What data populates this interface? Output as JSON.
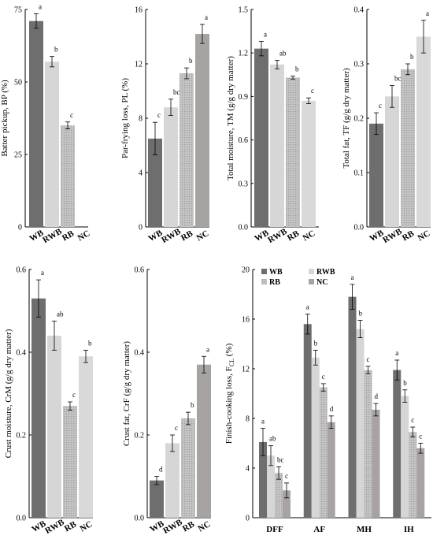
{
  "chart_data": [
    {
      "type": "bar",
      "id": "bp",
      "ylabel": "Batter pickup, BP (%)",
      "categories": [
        "WB",
        "RWB",
        "RB",
        "NC"
      ],
      "values": [
        71,
        57,
        35,
        null
      ],
      "errors": [
        2.5,
        1.8,
        1.2,
        null
      ],
      "letters": [
        "a",
        "b",
        "c",
        ""
      ],
      "ylim": [
        0,
        75
      ],
      "yticks": [
        "0",
        "25",
        "50",
        "75"
      ]
    },
    {
      "type": "bar",
      "id": "pl",
      "ylabel": "Par-frying loss, PL (%)",
      "categories": [
        "WB",
        "RWB",
        "RB",
        "NC"
      ],
      "values": [
        6.5,
        8.8,
        11.3,
        14.2
      ],
      "errors": [
        1.2,
        0.6,
        0.4,
        0.7
      ],
      "letters": [
        "c",
        "bc",
        "b",
        "a"
      ],
      "ylim": [
        0,
        16
      ],
      "yticks": [
        "0",
        "4",
        "8",
        "12",
        "16"
      ]
    },
    {
      "type": "bar",
      "id": "tm",
      "ylabel": "Total moisture, TM (g/g dry matter)",
      "categories": [
        "WB",
        "RWB",
        "RB",
        "NC"
      ],
      "values": [
        1.23,
        1.12,
        1.03,
        0.87
      ],
      "errors": [
        0.05,
        0.03,
        0.01,
        0.02
      ],
      "letters": [
        "a",
        "ab",
        "b",
        "c"
      ],
      "ylim": [
        0,
        1.5
      ],
      "yticks": [
        "0.0",
        "0.3",
        "0.6",
        "0.9",
        "1.2",
        "1.5"
      ]
    },
    {
      "type": "bar",
      "id": "tf",
      "ylabel": "Total fat, TF (g/g dry matter)",
      "categories": [
        "WB",
        "RWB",
        "RB",
        "NC"
      ],
      "values": [
        0.19,
        0.24,
        0.29,
        0.35
      ],
      "errors": [
        0.02,
        0.02,
        0.01,
        0.03
      ],
      "letters": [
        "c",
        "bc",
        "b",
        "a"
      ],
      "ylim": [
        0,
        0.4
      ],
      "yticks": [
        "0.0",
        "0.1",
        "0.2",
        "0.3",
        "0.4"
      ]
    },
    {
      "type": "bar",
      "id": "crm",
      "ylabel": "Crust moisture, CrM (g/g dry matter)",
      "categories": [
        "WB",
        "RWB",
        "RB",
        "NC"
      ],
      "values": [
        0.53,
        0.44,
        0.27,
        0.39
      ],
      "errors": [
        0.045,
        0.035,
        0.01,
        0.015
      ],
      "letters": [
        "a",
        "ab",
        "c",
        "b"
      ],
      "ylim": [
        0,
        0.6
      ],
      "yticks": [
        "0.0",
        "0.2",
        "0.4",
        "0.6"
      ]
    },
    {
      "type": "bar",
      "id": "crf",
      "ylabel": "Crust fat, CrF (g/g dry matter)",
      "categories": [
        "WB",
        "RWB",
        "RB",
        "NC"
      ],
      "values": [
        0.09,
        0.18,
        0.24,
        0.37
      ],
      "errors": [
        0.01,
        0.02,
        0.015,
        0.02
      ],
      "letters": [
        "d",
        "c",
        "b",
        "a"
      ],
      "ylim": [
        0,
        0.6
      ],
      "yticks": [
        "0.0",
        "0.2",
        "0.4",
        "0.6"
      ]
    },
    {
      "type": "bar",
      "id": "fcl",
      "ylabel": "Finish-cooking loss, F",
      "ylabel_sub": "CL",
      "ylabel_unit": " (%)",
      "categories": [
        "DFF",
        "AF",
        "MH",
        "IH"
      ],
      "series": [
        {
          "name": "WB",
          "values": [
            6.1,
            15.6,
            17.8,
            11.9
          ],
          "errors": [
            1.1,
            0.8,
            1.0,
            0.8
          ],
          "letters": [
            "a",
            "a",
            "a",
            "a"
          ]
        },
        {
          "name": "RWB",
          "values": [
            5.0,
            12.9,
            15.2,
            9.8
          ],
          "errors": [
            0.8,
            0.6,
            0.7,
            0.5
          ],
          "letters": [
            "ab",
            "b",
            "b",
            "b"
          ]
        },
        {
          "name": "RB",
          "values": [
            3.6,
            10.5,
            11.9,
            6.9
          ],
          "errors": [
            0.5,
            0.3,
            0.3,
            0.4
          ],
          "letters": [
            "bc",
            "c",
            "c",
            "c"
          ]
        },
        {
          "name": "NC",
          "values": [
            2.2,
            7.7,
            8.7,
            5.6
          ],
          "errors": [
            0.6,
            0.5,
            0.5,
            0.4
          ],
          "letters": [
            "c",
            "d",
            "d",
            "c"
          ]
        }
      ],
      "legend": [
        "WB",
        "RWB",
        "RB",
        "NC"
      ],
      "ylim": [
        0,
        20
      ],
      "yticks": [
        "0",
        "4",
        "8",
        "12",
        "16",
        "20"
      ]
    }
  ],
  "colors": {
    "WB": "#6e6e6e",
    "RWB": "#d6d6d6",
    "RB": "#bdbdbd",
    "NC": "#a8a3a3",
    "NC_light": "#d9d9d9"
  }
}
